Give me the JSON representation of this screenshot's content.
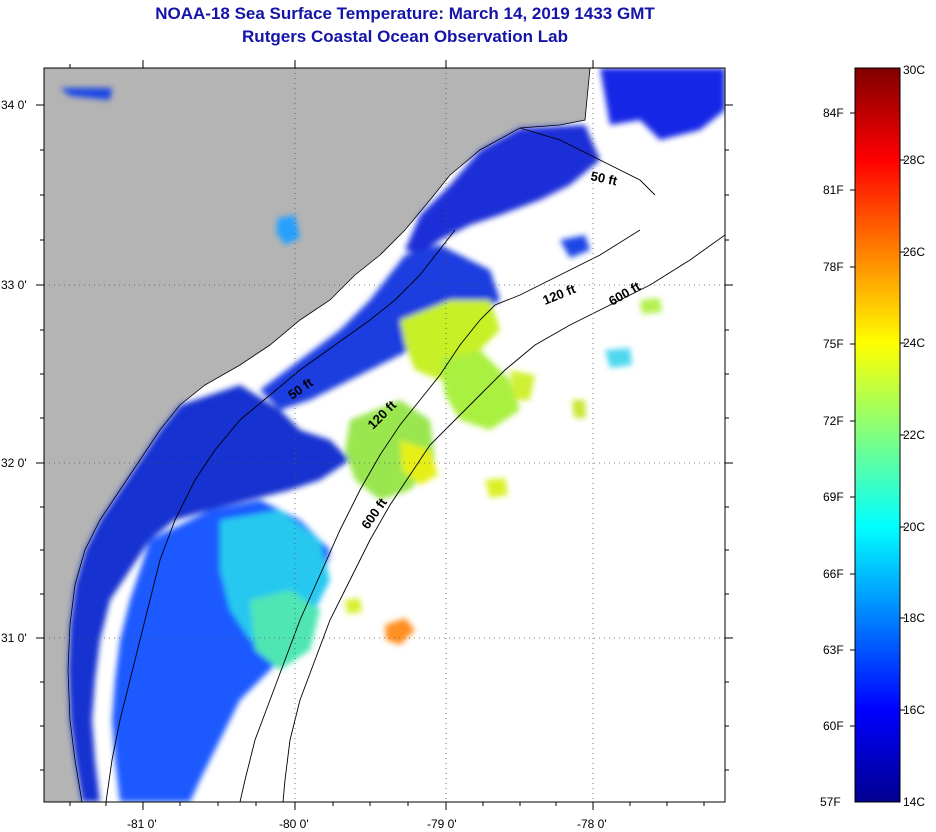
{
  "header": {
    "title": "NOAA-18 Sea Surface Temperature:  March 14, 2019 1433 GMT",
    "subtitle": "Rutgers Coastal Ocean Observation Lab"
  },
  "map": {
    "lat_ticks": [
      "34 0'",
      "33 0'",
      "32 0'",
      "31 0'"
    ],
    "lon_ticks": [
      "-81 0'",
      "-80 0'",
      "-79 0'",
      "-78 0'"
    ],
    "contour_labels": [
      "50 ft",
      "120 ft",
      "600 ft",
      "50 ft",
      "120 ft",
      "600 ft"
    ],
    "colors": {
      "land": "#b4b4b4",
      "ocean_missing": "#ffffff",
      "grid": "#555555"
    }
  },
  "colorbar": {
    "fahrenheit_labels": [
      "84F",
      "81F",
      "78F",
      "75F",
      "72F",
      "69F",
      "66F",
      "63F",
      "60F",
      "57F"
    ],
    "celsius_labels": [
      "30C",
      "28C",
      "26C",
      "24C",
      "22C",
      "20C",
      "18C",
      "16C",
      "14C"
    ],
    "colors": [
      "#00008f",
      "#0000ff",
      "#0080ff",
      "#00ffff",
      "#80ff80",
      "#ffff00",
      "#ff8000",
      "#ff0000",
      "#800000"
    ]
  }
}
